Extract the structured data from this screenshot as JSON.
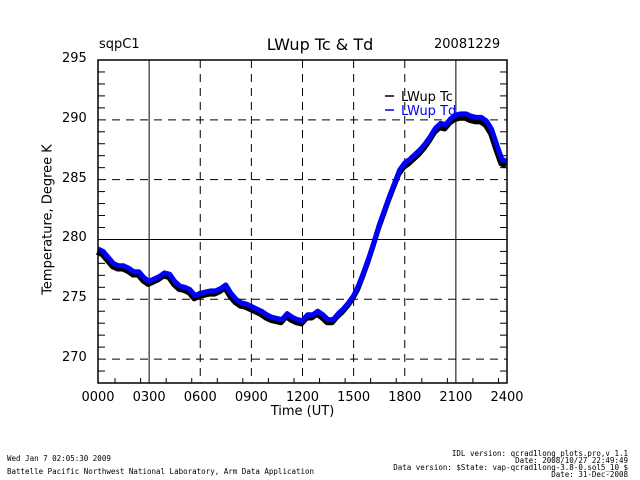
{
  "header": {
    "site": "sqpC1",
    "date": "20081229"
  },
  "footer": {
    "left_line1": "Wed Jan  7 02:05:30 2009",
    "left_line2": "Battelle Pacific Northwest National Laboratory, Arm Data Application",
    "right_line1": "IDL version: qcrad1long_plots.pro,v 1.1",
    "right_line2": "Date: 2008/10/27 22:49:49",
    "right_line3": "Data version: $State: vap-qcrad1long-3.8-0.sol5_10 $",
    "right_line4": "Date: 31-Dec-2008"
  },
  "colors": {
    "tc": "#000000",
    "td": "#0000ff"
  },
  "chart_data": {
    "type": "line",
    "title": "LWup Tc & Td",
    "xlabel": "Time (UT)",
    "ylabel": "Temperature, Degree K",
    "xlim": [
      0,
      24
    ],
    "ylim": [
      268,
      295
    ],
    "xticks": [
      0,
      3,
      6,
      9,
      12,
      15,
      18,
      21,
      24
    ],
    "xtick_labels": [
      "0000",
      "0300",
      "0600",
      "0900",
      "1200",
      "1500",
      "1800",
      "2100",
      "2400"
    ],
    "yticks": [
      270,
      275,
      280,
      285,
      290,
      295
    ],
    "ytick_labels": [
      "270",
      "275",
      "280",
      "285",
      "290",
      "295"
    ],
    "grid": true,
    "legend": "top-right",
    "series": [
      {
        "name": "LWup Tc",
        "color": "#000000",
        "x": [
          0,
          0.3,
          0.6,
          0.9,
          1.2,
          1.5,
          1.8,
          2.1,
          2.4,
          2.7,
          3.0,
          3.3,
          3.6,
          3.9,
          4.2,
          4.5,
          4.8,
          5.1,
          5.4,
          5.7,
          6.0,
          6.3,
          6.6,
          6.9,
          7.2,
          7.5,
          7.8,
          8.1,
          8.4,
          8.7,
          9.0,
          9.3,
          9.6,
          9.9,
          10.2,
          10.5,
          10.8,
          11.1,
          11.4,
          11.7,
          12.0,
          12.3,
          12.6,
          12.9,
          13.2,
          13.5,
          13.8,
          14.1,
          14.4,
          14.7,
          15.0,
          15.3,
          15.6,
          15.9,
          16.2,
          16.5,
          16.8,
          17.1,
          17.4,
          17.7,
          18.0,
          18.3,
          18.6,
          18.9,
          19.2,
          19.5,
          19.8,
          20.1,
          20.4,
          20.7,
          21.0,
          21.3,
          21.6,
          21.9,
          22.2,
          22.5,
          22.8,
          23.1,
          23.4,
          23.7,
          24.0
        ],
        "y": [
          279.1,
          278.9,
          278.4,
          277.9,
          277.7,
          277.7,
          277.5,
          277.2,
          277.2,
          276.7,
          276.4,
          276.6,
          276.8,
          277.1,
          277.0,
          276.4,
          276.0,
          275.9,
          275.7,
          275.2,
          275.4,
          275.5,
          275.6,
          275.6,
          275.8,
          276.1,
          275.4,
          274.9,
          274.6,
          274.5,
          274.3,
          274.1,
          273.9,
          273.6,
          273.4,
          273.3,
          273.2,
          273.7,
          273.4,
          273.2,
          273.1,
          273.6,
          273.6,
          273.9,
          273.6,
          273.2,
          273.2,
          273.7,
          274.1,
          274.6,
          275.2,
          276.0,
          277.1,
          278.3,
          279.6,
          281.0,
          282.2,
          283.4,
          284.5,
          285.6,
          286.2,
          286.5,
          286.9,
          287.3,
          287.8,
          288.4,
          289.1,
          289.5,
          289.4,
          289.9,
          290.2,
          290.3,
          290.3,
          290.1,
          290.0,
          290.0,
          289.7,
          289.0,
          287.7,
          286.5,
          286.3
        ]
      },
      {
        "name": "LWup Td",
        "color": "#0000ff",
        "x": [
          0,
          0.3,
          0.6,
          0.9,
          1.2,
          1.5,
          1.8,
          2.1,
          2.4,
          2.7,
          3.0,
          3.3,
          3.6,
          3.9,
          4.2,
          4.5,
          4.8,
          5.1,
          5.4,
          5.7,
          6.0,
          6.3,
          6.6,
          6.9,
          7.2,
          7.5,
          7.8,
          8.1,
          8.4,
          8.7,
          9.0,
          9.3,
          9.6,
          9.9,
          10.2,
          10.5,
          10.8,
          11.1,
          11.4,
          11.7,
          12.0,
          12.3,
          12.6,
          12.9,
          13.2,
          13.5,
          13.8,
          14.1,
          14.4,
          14.7,
          15.0,
          15.3,
          15.6,
          15.9,
          16.2,
          16.5,
          16.8,
          17.1,
          17.4,
          17.7,
          18.0,
          18.3,
          18.6,
          18.9,
          19.2,
          19.5,
          19.8,
          20.1,
          20.4,
          20.7,
          21.0,
          21.3,
          21.6,
          21.9,
          22.2,
          22.5,
          22.8,
          23.1,
          23.4,
          23.7,
          24.0
        ],
        "y": [
          279.2,
          279.0,
          278.5,
          278.0,
          277.8,
          277.8,
          277.6,
          277.3,
          277.3,
          276.8,
          276.5,
          276.7,
          276.9,
          277.2,
          277.1,
          276.5,
          276.1,
          276.0,
          275.8,
          275.3,
          275.5,
          275.6,
          275.7,
          275.7,
          275.9,
          276.2,
          275.5,
          275.0,
          274.7,
          274.6,
          274.4,
          274.2,
          274.0,
          273.7,
          273.5,
          273.4,
          273.3,
          273.8,
          273.5,
          273.3,
          273.2,
          273.7,
          273.7,
          274.0,
          273.7,
          273.3,
          273.3,
          273.8,
          274.2,
          274.7,
          275.3,
          276.2,
          277.3,
          278.5,
          279.8,
          281.2,
          282.4,
          283.6,
          284.7,
          285.8,
          286.4,
          286.7,
          287.1,
          287.5,
          288.0,
          288.6,
          289.3,
          289.7,
          289.6,
          290.1,
          290.4,
          290.5,
          290.5,
          290.3,
          290.2,
          290.2,
          289.9,
          289.2,
          287.9,
          286.7,
          286.5
        ]
      }
    ]
  }
}
